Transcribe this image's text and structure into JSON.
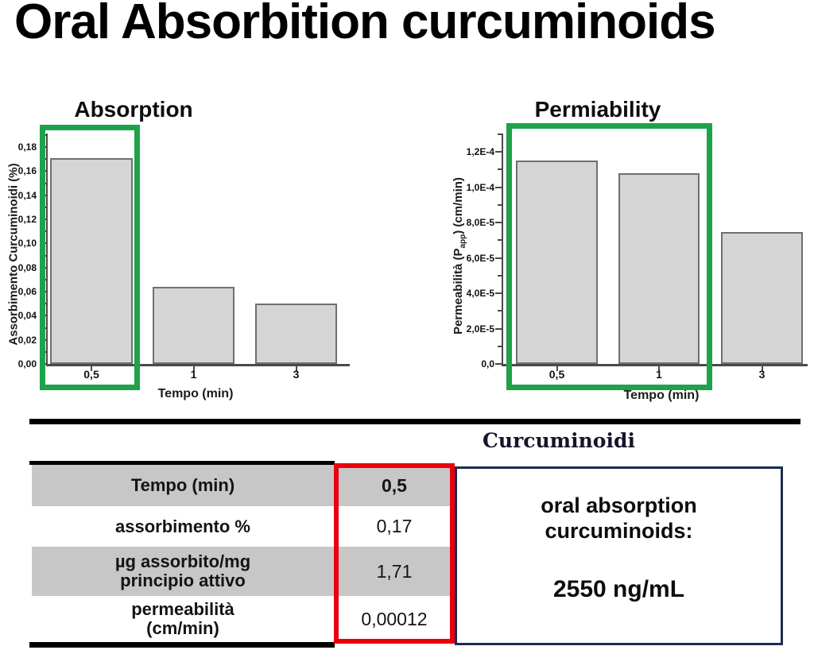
{
  "title": "Oral Absorbition curcuminoids",
  "colors": {
    "highlight_green": "#1ea24a",
    "highlight_red": "#e8000d",
    "box_navy": "#1d2c4e",
    "bar_fill": "#d5d5d5",
    "bar_border": "#6f6f6f",
    "row_gray": "#c7c7c7"
  },
  "chart_data": [
    {
      "type": "bar",
      "title": "Absorption",
      "xlabel": "Tempo (min)",
      "ylabel": "Assorbimento Curcuminoidi (%)",
      "categories": [
        "0,5",
        "1",
        "3"
      ],
      "values": [
        0.171,
        0.064,
        0.05
      ],
      "ylim": [
        0,
        0.19
      ],
      "grid": false,
      "yticks": [
        {
          "v": 0.0,
          "label": "0,00"
        },
        {
          "v": 0.02,
          "label": "0,02"
        },
        {
          "v": 0.04,
          "label": "0,04"
        },
        {
          "v": 0.06,
          "label": "0,06"
        },
        {
          "v": 0.08,
          "label": "0,08"
        },
        {
          "v": 0.1,
          "label": "0,10"
        },
        {
          "v": 0.12,
          "label": "0,12"
        },
        {
          "v": 0.14,
          "label": "0,14"
        },
        {
          "v": 0.16,
          "label": "0,16"
        },
        {
          "v": 0.18,
          "label": "0,18"
        }
      ],
      "highlight": {
        "bars": [
          0
        ],
        "color": "green"
      }
    },
    {
      "type": "bar",
      "title": "Permiability",
      "xlabel": "Tempo (min)",
      "ylabel_parts": {
        "pre": "Permeabilità (P",
        "sub": "app",
        "post": ") (cm/min)"
      },
      "categories": [
        "0,5",
        "1",
        "3"
      ],
      "values": [
        0.000115,
        0.000108,
        7.45e-05
      ],
      "ylim": [
        0,
        0.00013
      ],
      "grid": false,
      "yticks": [
        {
          "v": 0.0,
          "label": "0,0"
        },
        {
          "v": 2e-05,
          "label": "2,0E-5"
        },
        {
          "v": 4e-05,
          "label": "4,0E-5"
        },
        {
          "v": 6e-05,
          "label": "6,0E-5"
        },
        {
          "v": 8e-05,
          "label": "8,0E-5"
        },
        {
          "v": 0.0001,
          "label": "1,0E-4"
        },
        {
          "v": 0.00012,
          "label": "1,2E-4"
        }
      ],
      "highlight": {
        "bars": [
          0,
          1
        ],
        "color": "green"
      }
    }
  ],
  "table": {
    "header": "Curcuminoidi",
    "rows": [
      {
        "line1": "Tempo (min)",
        "line2": "",
        "value": "0,5"
      },
      {
        "line1": "assorbimento %",
        "line2": "",
        "value": "0,17"
      },
      {
        "line1": "µg assorbito/mg",
        "line2": "principio attivo",
        "value": "1,71"
      },
      {
        "line1": "permeabilità",
        "line2": "(cm/min)",
        "value": "0,00012"
      }
    ],
    "result": {
      "line1": "oral absorption",
      "line2": "curcuminoids:",
      "value": "2550 ng/mL"
    }
  }
}
